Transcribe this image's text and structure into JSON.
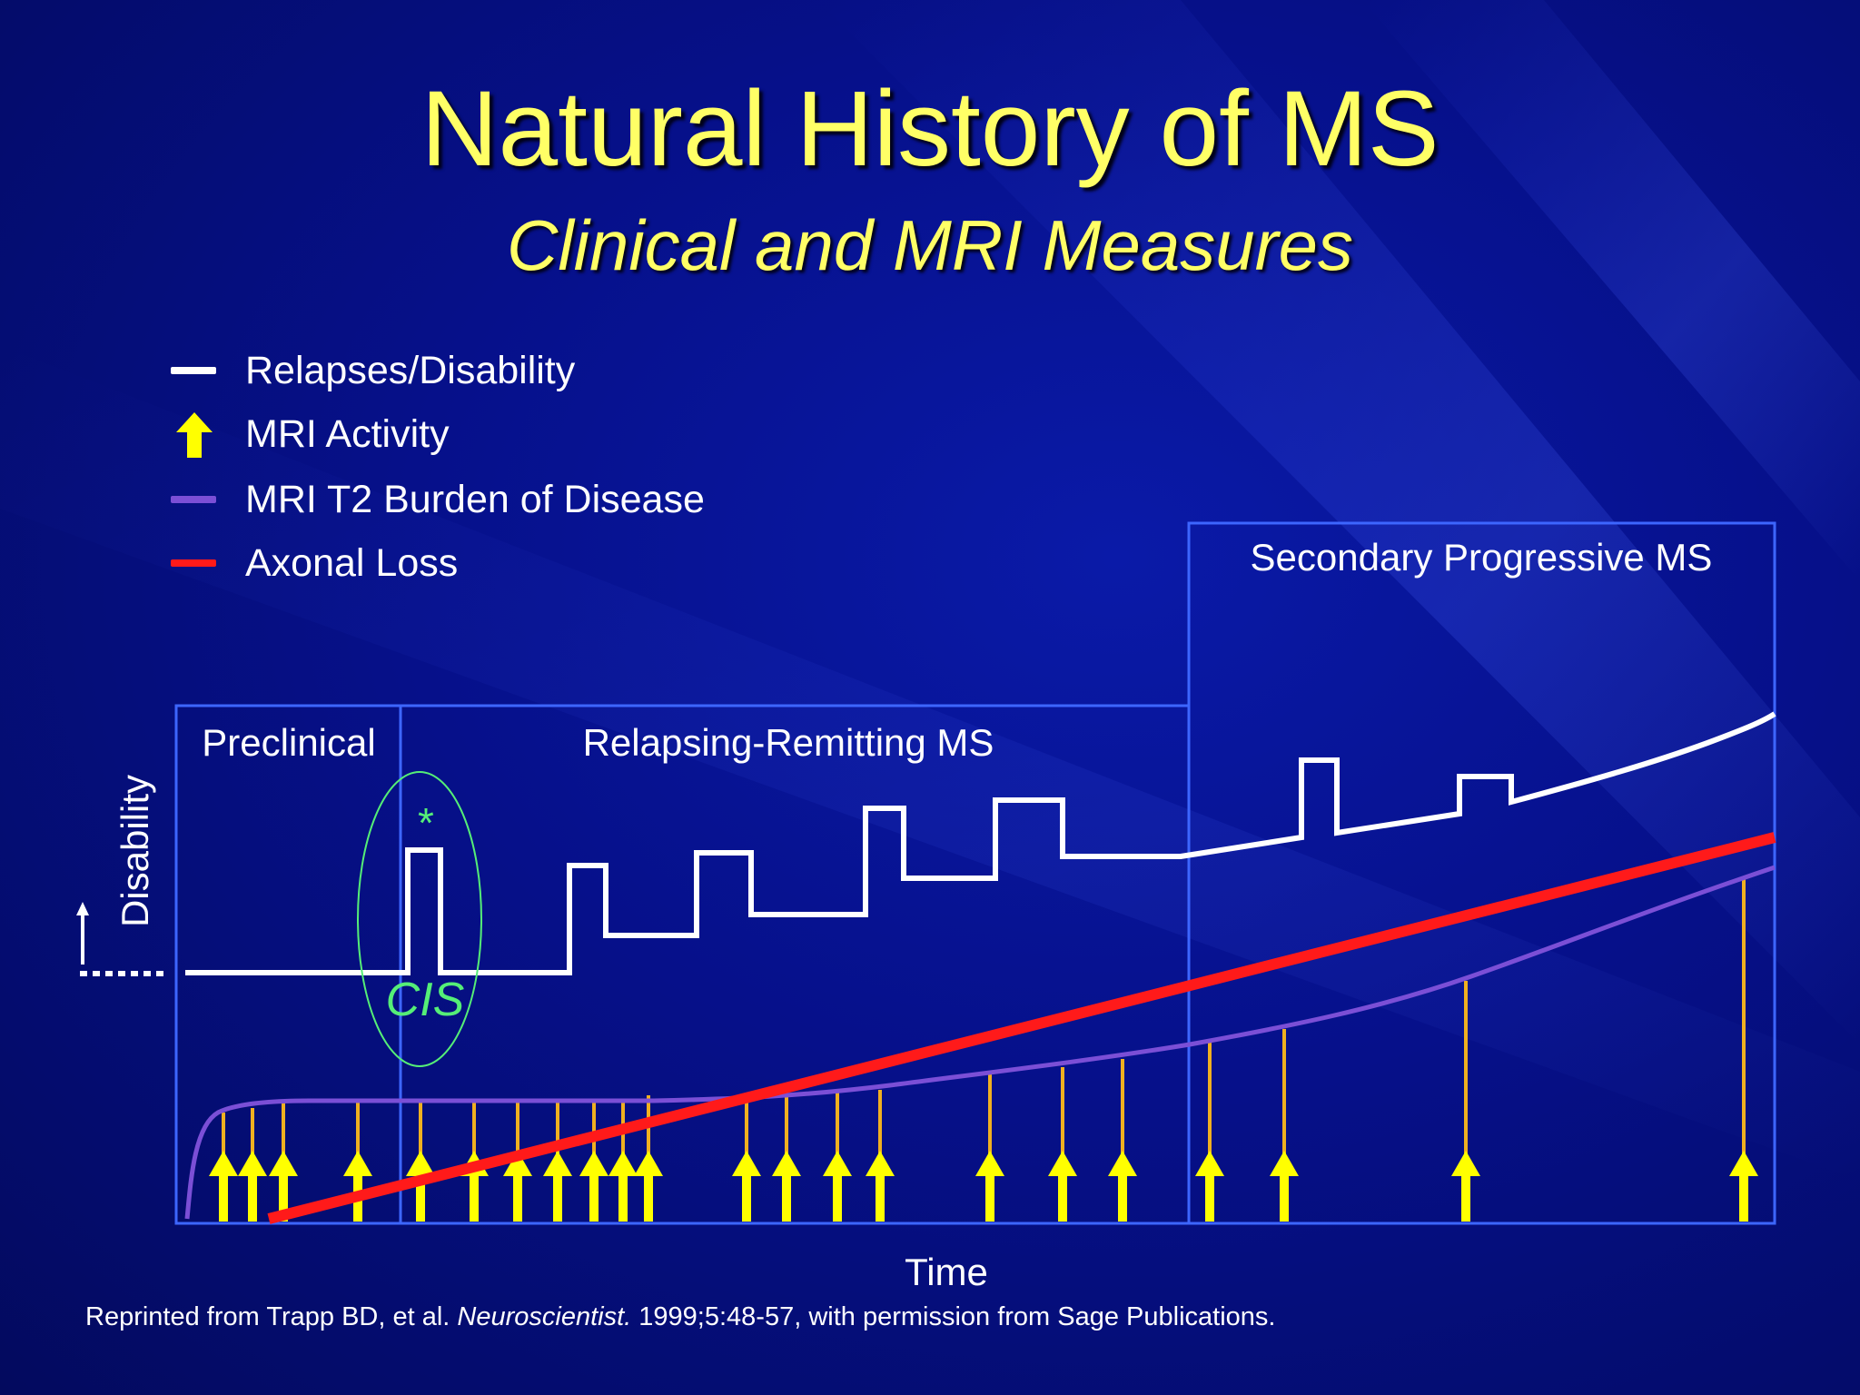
{
  "slide": {
    "title": "Natural History of MS",
    "subtitle": "Clinical and MRI Measures"
  },
  "legend": [
    {
      "label": "Relapses/Disability",
      "color": "#ffffff",
      "shape": "line"
    },
    {
      "label": "MRI Activity",
      "color": "#ffff00",
      "shape": "arrow-up-icon"
    },
    {
      "label": "MRI T2 Burden of Disease",
      "color": "#7b4fd6",
      "shape": "line"
    },
    {
      "label": "Axonal Loss",
      "color": "#ff1a1a",
      "shape": "line"
    }
  ],
  "phases": {
    "preclinical": "Preclinical",
    "relapsing": "Relapsing-Remitting MS",
    "secondary": "Secondary Progressive MS"
  },
  "annotations": {
    "cis": "CIS",
    "asterisk": "*"
  },
  "axes": {
    "y_label": "Disability",
    "x_label": "Time"
  },
  "citation": {
    "before": "Reprinted from Trapp BD, et al. ",
    "journal": "Neuroscientist.",
    "after": " 1999;5:48-57, with permission from Sage Publications."
  },
  "colors": {
    "box": "#3d66ff",
    "relapse": "#ffffff",
    "mri_activity": "#ffff00",
    "t2": "#7b4fd6",
    "axonal": "#ff1a1a",
    "cis": "#55ee77"
  }
}
